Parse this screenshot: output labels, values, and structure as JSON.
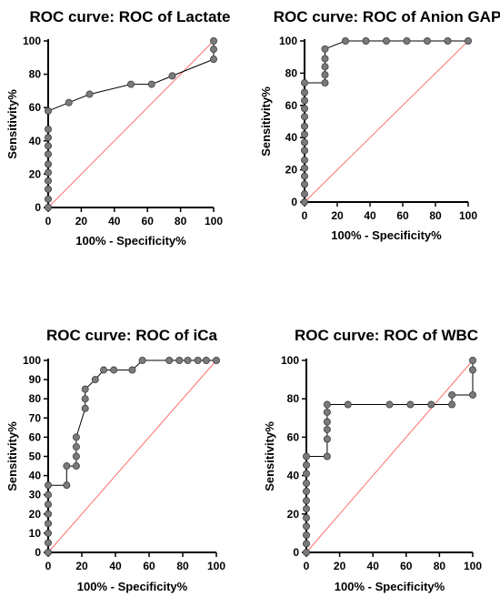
{
  "chart_data": [
    {
      "type": "line",
      "title": "ROC curve: ROC of Lactate",
      "xlabel": "100% - Specificity%",
      "ylabel": "Sensitivity%",
      "xlim": [
        0,
        100
      ],
      "ylim": [
        0,
        100
      ],
      "xticks": [
        "0",
        "20",
        "40",
        "60",
        "80",
        "100"
      ],
      "yticks": [
        "0",
        "20",
        "40",
        "60",
        "80",
        "100"
      ],
      "series": [
        {
          "x": [
            0,
            0,
            0,
            0,
            0,
            0,
            0,
            0,
            0,
            0,
            0,
            12.5,
            25,
            50,
            62.5,
            75,
            100,
            100,
            100
          ],
          "y": [
            0,
            5,
            11,
            16,
            21,
            26,
            32,
            37,
            42,
            47,
            58,
            63,
            68,
            74,
            74,
            79,
            89,
            95,
            100
          ]
        }
      ],
      "reference_line": {
        "x": [
          0,
          100
        ],
        "y": [
          0,
          100
        ],
        "color": "#ff6f6f"
      }
    },
    {
      "type": "line",
      "title": "ROC curve: ROC of Anion GAP",
      "xlabel": "100% - Specificity%",
      "ylabel": "Sensitivity%",
      "xlim": [
        0,
        100
      ],
      "ylim": [
        0,
        100
      ],
      "xticks": [
        "0",
        "20",
        "40",
        "60",
        "80",
        "100"
      ],
      "yticks": [
        "0",
        "20",
        "40",
        "60",
        "80",
        "100"
      ],
      "series": [
        {
          "x": [
            0,
            0,
            0,
            0,
            0,
            0,
            0,
            0,
            0,
            0,
            0,
            0,
            0,
            0,
            0,
            12.5,
            12.5,
            12.5,
            12.5,
            12.5,
            25,
            37.5,
            50,
            62.5,
            75,
            87.5,
            100
          ],
          "y": [
            0,
            5,
            11,
            16,
            21,
            26,
            32,
            37,
            42,
            47,
            53,
            58,
            63,
            68,
            74,
            74,
            79,
            84,
            89,
            95,
            100,
            100,
            100,
            100,
            100,
            100,
            100
          ]
        }
      ],
      "reference_line": {
        "x": [
          0,
          100
        ],
        "y": [
          0,
          100
        ],
        "color": "#ff6f6f"
      }
    },
    {
      "type": "line",
      "title": "ROC curve: ROC of iCa",
      "xlabel": "100% - Specificity%",
      "ylabel": "Sensitivity%",
      "xlim": [
        0,
        100
      ],
      "ylim": [
        0,
        100
      ],
      "xticks": [
        "0",
        "20",
        "40",
        "60",
        "80",
        "100"
      ],
      "yticks": [
        "0",
        "10",
        "20",
        "30",
        "40",
        "50",
        "60",
        "70",
        "80",
        "90",
        "100"
      ],
      "series": [
        {
          "x": [
            0,
            0,
            0,
            0,
            0,
            0,
            0,
            0,
            11,
            11,
            16.7,
            16.7,
            16.7,
            16.7,
            22,
            22,
            22,
            28,
            33,
            39,
            50,
            56,
            72,
            78,
            83,
            89,
            94,
            100
          ],
          "y": [
            0,
            5,
            10,
            15,
            20,
            25,
            30,
            35,
            35,
            45,
            45,
            50,
            55,
            60,
            75,
            80,
            85,
            90,
            95,
            95,
            95,
            100,
            100,
            100,
            100,
            100,
            100,
            100
          ]
        }
      ],
      "reference_line": {
        "x": [
          0,
          100
        ],
        "y": [
          0,
          100
        ],
        "color": "#ff6f6f"
      }
    },
    {
      "type": "line",
      "title": "ROC curve: ROC of WBC",
      "xlabel": "100% - Specificity%",
      "ylabel": "Sensitivity%",
      "xlim": [
        0,
        100
      ],
      "ylim": [
        0,
        100
      ],
      "xticks": [
        "0",
        "20",
        "40",
        "60",
        "80",
        "100"
      ],
      "yticks": [
        "0",
        "20",
        "40",
        "60",
        "80",
        "100"
      ],
      "series": [
        {
          "x": [
            0,
            0,
            0,
            0,
            0,
            0,
            0,
            0,
            0,
            0,
            0,
            0,
            12.5,
            12.5,
            12.5,
            12.5,
            12.5,
            12.5,
            25,
            50,
            62.5,
            75,
            87.5,
            87.5,
            100,
            100,
            100
          ],
          "y": [
            0,
            4.5,
            9,
            13.6,
            18,
            22.7,
            27,
            31.8,
            36,
            41,
            45.5,
            50,
            50,
            59,
            64,
            68,
            73,
            77,
            77,
            77,
            77,
            77,
            77,
            82,
            82,
            95,
            100
          ]
        }
      ],
      "reference_line": {
        "x": [
          0,
          100
        ],
        "y": [
          0,
          100
        ],
        "color": "#ff6f6f"
      }
    }
  ]
}
